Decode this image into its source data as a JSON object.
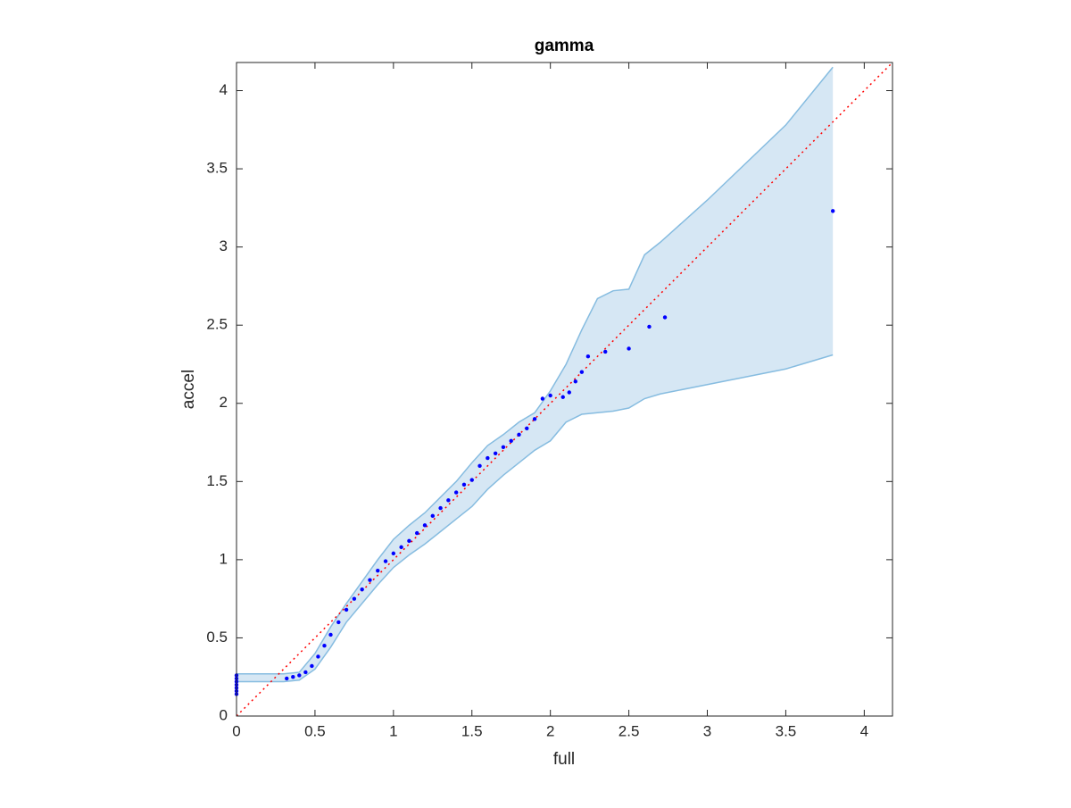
{
  "chart_data": {
    "type": "scatter",
    "title": "gamma",
    "xlabel": "full",
    "ylabel": "accel",
    "xlim": [
      0,
      4.18
    ],
    "ylim": [
      0,
      4.18
    ],
    "xticks": [
      0,
      0.5,
      1,
      1.5,
      2,
      2.5,
      3,
      3.5,
      4
    ],
    "yticks": [
      0,
      0.5,
      1,
      1.5,
      2,
      2.5,
      3,
      3.5,
      4
    ],
    "points": {
      "color": "#0000ff",
      "x": [
        0,
        0,
        0,
        0,
        0,
        0,
        0,
        0.32,
        0.36,
        0.4,
        0.44,
        0.48,
        0.52,
        0.56,
        0.6,
        0.65,
        0.7,
        0.75,
        0.8,
        0.85,
        0.9,
        0.95,
        1.0,
        1.05,
        1.1,
        1.15,
        1.2,
        1.25,
        1.3,
        1.35,
        1.4,
        1.45,
        1.5,
        1.55,
        1.6,
        1.65,
        1.7,
        1.75,
        1.8,
        1.85,
        1.9,
        1.95,
        2.0,
        2.08,
        2.12,
        2.16,
        2.2,
        2.24,
        2.35,
        2.5,
        2.63,
        2.73,
        3.8
      ],
      "y": [
        0.14,
        0.16,
        0.18,
        0.2,
        0.22,
        0.24,
        0.26,
        0.24,
        0.25,
        0.26,
        0.28,
        0.32,
        0.38,
        0.45,
        0.52,
        0.6,
        0.68,
        0.75,
        0.81,
        0.87,
        0.93,
        0.99,
        1.04,
        1.08,
        1.12,
        1.17,
        1.22,
        1.28,
        1.33,
        1.38,
        1.43,
        1.48,
        1.51,
        1.6,
        1.65,
        1.68,
        1.72,
        1.76,
        1.8,
        1.84,
        1.9,
        2.03,
        2.05,
        2.04,
        2.07,
        2.14,
        2.2,
        2.3,
        2.33,
        2.35,
        2.49,
        2.55,
        3.23
      ]
    },
    "band": {
      "color": "#d6e7f4",
      "edge_color": "#86bce0",
      "x": [
        0,
        0.3,
        0.4,
        0.5,
        0.6,
        0.7,
        0.8,
        0.9,
        1.0,
        1.1,
        1.2,
        1.3,
        1.4,
        1.5,
        1.6,
        1.7,
        1.8,
        1.9,
        2.0,
        2.1,
        2.2,
        2.3,
        2.4,
        2.5,
        2.6,
        2.7,
        3.0,
        3.5,
        3.8
      ],
      "upper": [
        0.27,
        0.27,
        0.28,
        0.4,
        0.57,
        0.72,
        0.86,
        1.0,
        1.13,
        1.22,
        1.3,
        1.4,
        1.5,
        1.62,
        1.73,
        1.8,
        1.88,
        1.94,
        2.08,
        2.25,
        2.47,
        2.67,
        2.72,
        2.73,
        2.95,
        3.03,
        3.3,
        3.78,
        4.15
      ],
      "lower": [
        0.22,
        0.22,
        0.23,
        0.3,
        0.44,
        0.6,
        0.72,
        0.84,
        0.95,
        1.03,
        1.1,
        1.18,
        1.26,
        1.34,
        1.45,
        1.54,
        1.62,
        1.7,
        1.76,
        1.88,
        1.93,
        1.94,
        1.95,
        1.97,
        2.03,
        2.06,
        2.12,
        2.22,
        2.31
      ]
    },
    "reference_line": {
      "color": "#ff0000",
      "x": [
        0,
        4.18
      ],
      "y": [
        0,
        4.18
      ]
    }
  }
}
